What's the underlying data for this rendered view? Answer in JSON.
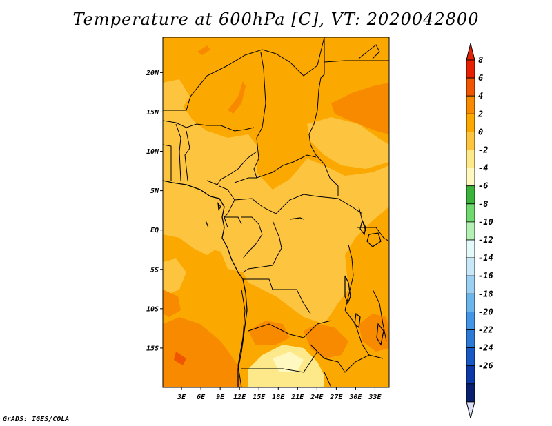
{
  "title": "Temperature at 600hPa [C], VT: 2020042800",
  "credit": "GrADS: IGES/COLA",
  "lat_labels": [
    {
      "text": "20N",
      "lat": 20
    },
    {
      "text": "15N",
      "lat": 15
    },
    {
      "text": "10N",
      "lat": 10
    },
    {
      "text": "5N",
      "lat": 5
    },
    {
      "text": "EQ",
      "lat": 0
    },
    {
      "text": "5S",
      "lat": -5
    },
    {
      "text": "10S",
      "lat": -10
    },
    {
      "text": "15S",
      "lat": -15
    }
  ],
  "lon_labels": [
    {
      "text": "3E",
      "lon": 3
    },
    {
      "text": "6E",
      "lon": 6
    },
    {
      "text": "9E",
      "lon": 9
    },
    {
      "text": "12E",
      "lon": 12
    },
    {
      "text": "15E",
      "lon": 15
    },
    {
      "text": "18E",
      "lon": 18
    },
    {
      "text": "21E",
      "lon": 21
    },
    {
      "text": "24E",
      "lon": 24
    },
    {
      "text": "27E",
      "lon": 27
    },
    {
      "text": "30E",
      "lon": 30
    },
    {
      "text": "33E",
      "lon": 33
    }
  ],
  "colorbar": {
    "levels": [
      "8",
      "6",
      "4",
      "2",
      "0",
      "-2",
      "-4",
      "-6",
      "-8",
      "-10",
      "-12",
      "-14",
      "-16",
      "-18",
      "-20",
      "-22",
      "-24",
      "-26"
    ],
    "colors": [
      "#e62000",
      "#f05500",
      "#f88a00",
      "#fba800",
      "#fdc440",
      "#fde88a",
      "#fff8c0",
      "#3bb33b",
      "#6fd86f",
      "#b4f0b4",
      "#e4f9f9",
      "#c8e8f8",
      "#9cd0f2",
      "#6cb4ec",
      "#4496e4",
      "#2a7ad6",
      "#1858c4",
      "#0c38a8",
      "#08206e"
    ],
    "top_color": "#e62000",
    "bottom_color": "#dde0f8"
  }
}
